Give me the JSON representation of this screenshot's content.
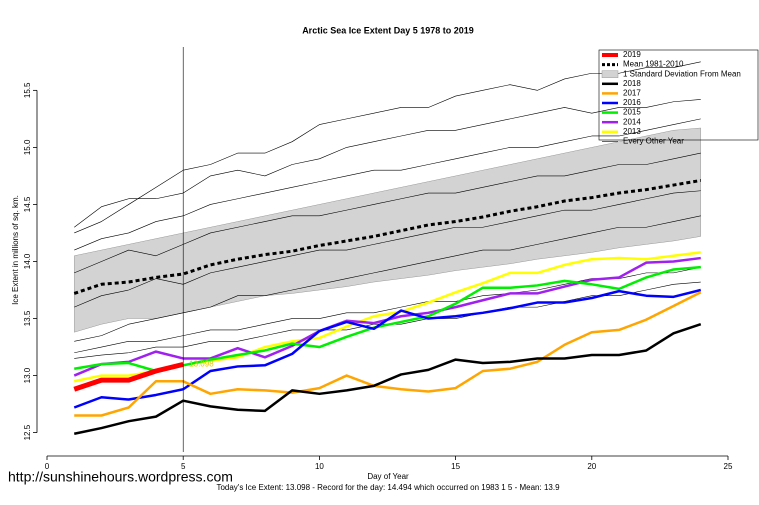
{
  "chart_data": {
    "type": "line",
    "title": "Arctic Sea Ice Extent Day 5 1978 to 2019",
    "xlabel": "Day of Year",
    "ylabel": "Ice Extent in millions of sq. km.",
    "watermark": "http://sunshinehours.wordpress.com",
    "footer": "Today's Ice Extent: 13.098  - Record for the day: 14.494 which occurred on 1983 1 5  - Mean: 13.9",
    "x": [
      1,
      2,
      3,
      4,
      5,
      6,
      7,
      8,
      9,
      10,
      11,
      12,
      13,
      14,
      15,
      16,
      17,
      18,
      19,
      20,
      21,
      22,
      23,
      24
    ],
    "xlim": [
      0,
      25
    ],
    "xticks": [
      0,
      5,
      10,
      15,
      20,
      25
    ],
    "ylim": [
      12.33,
      15.88
    ],
    "yticks": [
      12.5,
      {
        "value": 13,
        "label": "13.0"
      },
      13.5,
      {
        "value": 14,
        "label": "14.0"
      },
      14.5,
      {
        "value": 15,
        "label": "15.0"
      },
      15.5
    ],
    "current_day": 5,
    "band": {
      "name": "1 Standard Deviation From Mean",
      "color": "#d3d3d3",
      "upper": [
        14.05,
        14.1,
        14.15,
        14.2,
        14.25,
        14.3,
        14.35,
        14.4,
        14.45,
        14.5,
        14.55,
        14.6,
        14.65,
        14.7,
        14.75,
        14.8,
        14.85,
        14.9,
        14.95,
        15.0,
        15.05,
        15.1,
        15.15,
        15.17
      ],
      "lower": [
        13.38,
        13.45,
        13.5,
        13.5,
        13.55,
        13.6,
        13.65,
        13.7,
        13.72,
        13.75,
        13.78,
        13.82,
        13.85,
        13.88,
        13.92,
        13.95,
        13.98,
        14.02,
        14.05,
        14.08,
        14.12,
        14.15,
        14.18,
        14.22
      ]
    },
    "other_years": {
      "name": "Every Other Year",
      "color": "#000000",
      "lines": [
        [
          14.25,
          14.35,
          14.5,
          14.65,
          14.8,
          14.85,
          14.95,
          14.95,
          15.05,
          15.2,
          15.25,
          15.3,
          15.35,
          15.35,
          15.45,
          15.5,
          15.55,
          15.5,
          15.6,
          15.65,
          15.65,
          15.7,
          15.7,
          15.75
        ],
        [
          14.3,
          14.48,
          14.55,
          14.55,
          14.6,
          14.75,
          14.8,
          14.75,
          14.85,
          14.9,
          15.0,
          15.05,
          15.1,
          15.15,
          15.15,
          15.2,
          15.25,
          15.3,
          15.35,
          15.3,
          15.35,
          15.35,
          15.4,
          15.42
        ],
        [
          14.1,
          14.2,
          14.25,
          14.35,
          14.4,
          14.5,
          14.55,
          14.6,
          14.65,
          14.7,
          14.75,
          14.8,
          14.8,
          14.85,
          14.9,
          14.95,
          15.0,
          15.0,
          15.05,
          15.1,
          15.1,
          15.15,
          15.2,
          15.25
        ],
        [
          13.9,
          14.0,
          14.1,
          14.05,
          14.15,
          14.25,
          14.3,
          14.35,
          14.4,
          14.4,
          14.45,
          14.5,
          14.55,
          14.6,
          14.6,
          14.65,
          14.7,
          14.75,
          14.75,
          14.8,
          14.85,
          14.85,
          14.9,
          14.95
        ],
        [
          13.6,
          13.7,
          13.75,
          13.85,
          13.8,
          13.9,
          13.95,
          14.0,
          14.05,
          14.1,
          14.1,
          14.15,
          14.2,
          14.25,
          14.3,
          14.3,
          14.35,
          14.4,
          14.45,
          14.45,
          14.5,
          14.55,
          14.6,
          14.62
        ],
        [
          13.3,
          13.35,
          13.45,
          13.5,
          13.55,
          13.6,
          13.7,
          13.7,
          13.75,
          13.8,
          13.85,
          13.9,
          13.95,
          14.0,
          14.05,
          14.1,
          14.1,
          14.15,
          14.2,
          14.25,
          14.3,
          14.3,
          14.35,
          14.4
        ],
        [
          13.2,
          13.25,
          13.3,
          13.3,
          13.35,
          13.4,
          13.4,
          13.45,
          13.5,
          13.5,
          13.55,
          13.55,
          13.6,
          13.65,
          13.65,
          13.7,
          13.72,
          13.75,
          13.8,
          13.85,
          13.85,
          13.9,
          13.9,
          13.95
        ],
        [
          13.15,
          13.18,
          13.2,
          13.25,
          13.25,
          13.3,
          13.3,
          13.35,
          13.4,
          13.4,
          13.4,
          13.45,
          13.45,
          13.5,
          13.5,
          13.55,
          13.6,
          13.6,
          13.65,
          13.7,
          13.7,
          13.75,
          13.8,
          13.82
        ]
      ]
    },
    "series": [
      {
        "name": "2019",
        "color": "#ff0000",
        "width": 5,
        "values": [
          12.88,
          12.96,
          12.96,
          13.04,
          13.098,
          null,
          null,
          null,
          null,
          null,
          null,
          null,
          null,
          null,
          null,
          null,
          null,
          null,
          null,
          null,
          null,
          null,
          null,
          null
        ]
      },
      {
        "name": "Mean 1981-2010",
        "color": "#000000",
        "width": 3,
        "dashed": true,
        "values": [
          13.72,
          13.8,
          13.82,
          13.86,
          13.89,
          13.97,
          14.02,
          14.06,
          14.09,
          14.14,
          14.18,
          14.22,
          14.27,
          14.32,
          14.35,
          14.39,
          14.44,
          14.48,
          14.53,
          14.56,
          14.6,
          14.63,
          14.67,
          14.71
        ]
      },
      {
        "name": "2018",
        "color": "#000000",
        "width": 2.5,
        "values": [
          12.49,
          12.54,
          12.6,
          12.64,
          12.78,
          12.73,
          12.7,
          12.69,
          12.87,
          12.84,
          12.87,
          12.91,
          13.01,
          13.05,
          13.14,
          13.11,
          13.12,
          13.15,
          13.15,
          13.18,
          13.18,
          13.22,
          13.37,
          13.45
        ]
      },
      {
        "name": "2017",
        "color": "#ffa500",
        "width": 2.5,
        "values": [
          12.65,
          12.65,
          12.72,
          12.95,
          12.95,
          12.84,
          12.88,
          12.87,
          12.85,
          12.89,
          13.0,
          12.91,
          12.88,
          12.86,
          12.89,
          13.04,
          13.06,
          13.12,
          13.27,
          13.38,
          13.4,
          13.49,
          13.61,
          13.73
        ]
      },
      {
        "name": "2016",
        "color": "#0000ff",
        "width": 2.5,
        "values": [
          12.72,
          12.81,
          12.79,
          12.83,
          12.88,
          13.04,
          13.08,
          13.09,
          13.19,
          13.39,
          13.47,
          13.41,
          13.57,
          13.5,
          13.52,
          13.55,
          13.59,
          13.64,
          13.64,
          13.68,
          13.74,
          13.7,
          13.69,
          13.75
        ]
      },
      {
        "name": "2015",
        "color": "#00ee00",
        "width": 2.5,
        "values": [
          13.06,
          13.1,
          13.11,
          13.04,
          13.09,
          13.14,
          13.18,
          13.22,
          13.28,
          13.25,
          13.34,
          13.42,
          13.47,
          13.52,
          13.63,
          13.77,
          13.77,
          13.79,
          13.83,
          13.8,
          13.76,
          13.86,
          13.93,
          13.95
        ]
      },
      {
        "name": "2014",
        "color": "#a020f0",
        "width": 2.5,
        "values": [
          13.0,
          13.1,
          13.12,
          13.21,
          13.15,
          13.15,
          13.24,
          13.16,
          13.26,
          13.39,
          13.48,
          13.46,
          13.52,
          13.55,
          13.6,
          13.66,
          13.72,
          13.72,
          13.78,
          13.84,
          13.86,
          13.99,
          14.0,
          14.03
        ]
      },
      {
        "name": "2013",
        "color": "#ffff00",
        "width": 2.5,
        "values": [
          12.95,
          13.0,
          13.0,
          13.04,
          13.09,
          13.13,
          13.16,
          13.25,
          13.3,
          13.33,
          13.43,
          13.52,
          13.56,
          13.64,
          13.73,
          13.81,
          13.9,
          13.9,
          13.97,
          14.02,
          14.03,
          14.02,
          14.05,
          14.08
        ]
      }
    ]
  }
}
